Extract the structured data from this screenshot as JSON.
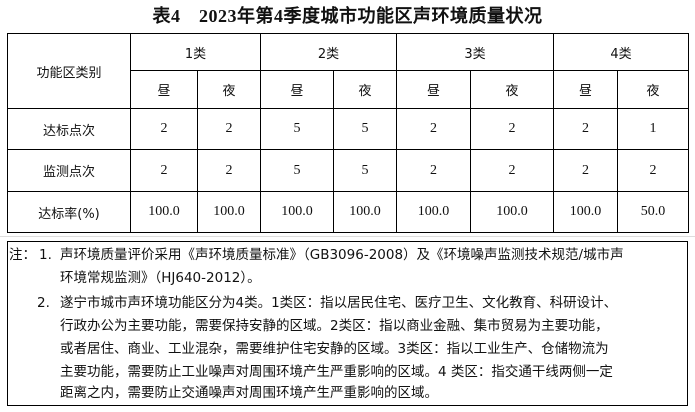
{
  "title": "表4　2023年第4季度城市功能区声环境质量状况",
  "table": {
    "corner": "功能区类别",
    "groups": [
      "1类",
      "2类",
      "3类",
      "4类"
    ],
    "sub": [
      "昼",
      "夜",
      "昼",
      "夜",
      "昼",
      "夜",
      "昼",
      "夜"
    ],
    "rows": [
      {
        "label": "达标点次",
        "values": [
          "2",
          "2",
          "5",
          "5",
          "2",
          "2",
          "2",
          "1"
        ]
      },
      {
        "label": "监测点次",
        "values": [
          "2",
          "2",
          "5",
          "5",
          "2",
          "2",
          "2",
          "2"
        ]
      },
      {
        "label": "达标率(%)",
        "values": [
          "100.0",
          "100.0",
          "100.0",
          "100.0",
          "100.0",
          "100.0",
          "100.0",
          "50.0"
        ]
      }
    ]
  },
  "notes": {
    "prefix": "注：",
    "n1_num": "1.",
    "n1_l1": "声环境质量评价采用《声环境质量标准》（GB3096-2008）及《环境噪声监测技术规范/城市声",
    "n1_l2": "环境常规监测》（HJ640-2012）。",
    "n2_num": "2.",
    "n2_l1": "遂宁市城市声环境功能区分为4类。1类区：指以居民住宅、医疗卫生、文化教育、科研设计、",
    "n2_l2": "行政办公为主要功能，需要保持安静的区域。2类区：指以商业金融、集市贸易为主要功能，",
    "n2_l3": "或者居住、商业、工业混杂，需要维护住宅安静的区域。3类区：指以工业生产、仓储物流为",
    "n2_l4": "主要功能，需要防止工业噪声对周围环境产生严重影响的区域。4 类区：指交通干线两侧一定",
    "n2_l5": "距离之内，需要防止交通噪声对周围环境产生严重影响的区域。"
  }
}
